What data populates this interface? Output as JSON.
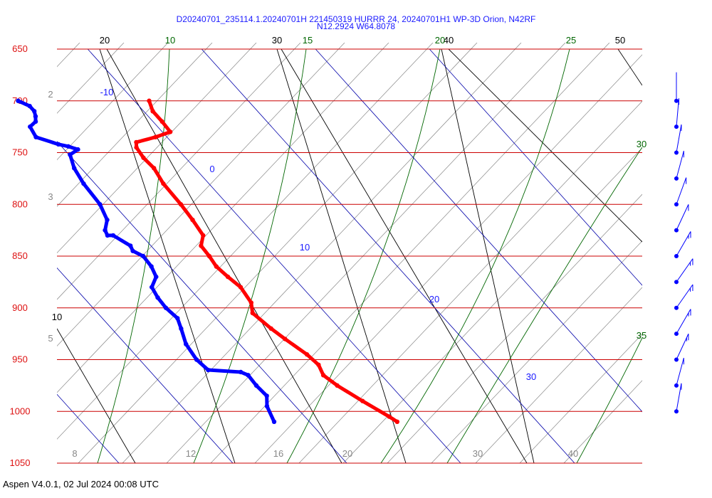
{
  "title": "D20240701_235114.1.20240701H 221450319 HURRR 24, 20240701H1 WP-3D Orion, N42RF",
  "subtitle": "N12.2924 W64.8078",
  "footer": "Aspen V4.0.1, 02 Jul 2024  00:08 UTC",
  "colors": {
    "temperature": "#ff0000",
    "dewpoint": "#0000ff",
    "isobar": "#cc0000",
    "pressure_label": "#dd1111",
    "isotherm": "#0000aa",
    "dry_adiabat": "#000000",
    "moist_adiabat": "#006600",
    "mixing_ratio": "#888888",
    "wind_barb": "#0000ff"
  },
  "chart_data": {
    "type": "line",
    "pressure_levels": [
      650,
      700,
      750,
      800,
      850,
      900,
      950,
      1000,
      1050
    ],
    "pressure_labels": [
      "650",
      "700",
      "750",
      "800",
      "850",
      "900",
      "950",
      "1000",
      "1050"
    ],
    "isotherm_labels": [
      "-10",
      "0",
      "10",
      "20",
      "30"
    ],
    "dry_adiabat_labels": [
      "20",
      "30",
      "40",
      "50",
      "10"
    ],
    "moist_adiabat_labels": [
      "10",
      "15",
      "20",
      "25",
      "30",
      "35"
    ],
    "mixing_ratio_labels": [
      "2",
      "3",
      "5",
      "8",
      "12",
      "16",
      "20",
      "30",
      "40"
    ],
    "series": [
      {
        "name": "temperature",
        "points": [
          [
            700,
            11.3
          ],
          [
            710,
            10.8
          ],
          [
            720,
            10.8
          ],
          [
            730,
            10.7
          ],
          [
            735,
            9.0
          ],
          [
            740,
            6.9
          ],
          [
            745,
            6.5
          ],
          [
            755,
            6.3
          ],
          [
            765,
            6.4
          ],
          [
            780,
            6.0
          ],
          [
            800,
            5.9
          ],
          [
            815,
            5.7
          ],
          [
            830,
            5.4
          ],
          [
            840,
            4.4
          ],
          [
            850,
            4.3
          ],
          [
            860,
            4.1
          ],
          [
            870,
            4.3
          ],
          [
            880,
            4.6
          ],
          [
            895,
            4.3
          ],
          [
            905,
            3.6
          ],
          [
            920,
            4.0
          ],
          [
            930,
            4.4
          ],
          [
            945,
            5.1
          ],
          [
            955,
            5.3
          ],
          [
            965,
            4.9
          ],
          [
            975,
            5.3
          ],
          [
            990,
            6.3
          ],
          [
            1005,
            7.4
          ],
          [
            1010,
            7.7
          ]
        ]
      },
      {
        "name": "dewpoint",
        "points": [
          [
            700,
            -0.2
          ],
          [
            705,
            0.4
          ],
          [
            710,
            0.4
          ],
          [
            715,
            0.1
          ],
          [
            720,
            -0.3
          ],
          [
            725,
            -1.2
          ],
          [
            735,
            -1.5
          ],
          [
            742,
            -0.1
          ],
          [
            744,
            0.6
          ],
          [
            747,
            1.2
          ],
          [
            752,
            0.1
          ],
          [
            765,
            -0.6
          ],
          [
            780,
            -1.0
          ],
          [
            800,
            -1.2
          ],
          [
            815,
            -1.8
          ],
          [
            825,
            -2.8
          ],
          [
            830,
            -3.0
          ],
          [
            830,
            -2.5
          ],
          [
            840,
            -1.8
          ],
          [
            845,
            -2.0
          ],
          [
            850,
            -1.5
          ],
          [
            860,
            -1.6
          ],
          [
            870,
            -2.0
          ],
          [
            880,
            -3.2
          ],
          [
            890,
            -3.5
          ],
          [
            900,
            -3.6
          ],
          [
            910,
            -3.4
          ],
          [
            920,
            -3.9
          ],
          [
            935,
            -4.7
          ],
          [
            950,
            -5.0
          ],
          [
            960,
            -4.8
          ],
          [
            962,
            -2.1
          ],
          [
            965,
            -1.7
          ],
          [
            975,
            -1.8
          ],
          [
            985,
            -1.7
          ],
          [
            995,
            -2.5
          ],
          [
            1010,
            -3.1
          ]
        ]
      }
    ],
    "wind_barbs": [
      {
        "pressure": 700,
        "speed_kt": 5,
        "direction_deg": 90
      },
      {
        "pressure": 725,
        "speed_kt": 10,
        "direction_deg": 95
      },
      {
        "pressure": 750,
        "speed_kt": 10,
        "direction_deg": 100
      },
      {
        "pressure": 775,
        "speed_kt": 10,
        "direction_deg": 105
      },
      {
        "pressure": 800,
        "speed_kt": 10,
        "direction_deg": 110
      },
      {
        "pressure": 825,
        "speed_kt": 10,
        "direction_deg": 115
      },
      {
        "pressure": 850,
        "speed_kt": 15,
        "direction_deg": 120
      },
      {
        "pressure": 875,
        "speed_kt": 15,
        "direction_deg": 125
      },
      {
        "pressure": 900,
        "speed_kt": 15,
        "direction_deg": 125
      },
      {
        "pressure": 925,
        "speed_kt": 15,
        "direction_deg": 120
      },
      {
        "pressure": 950,
        "speed_kt": 15,
        "direction_deg": 115
      },
      {
        "pressure": 975,
        "speed_kt": 10,
        "direction_deg": 105
      },
      {
        "pressure": 1000,
        "speed_kt": 10,
        "direction_deg": 100
      }
    ],
    "grid": true,
    "legend": "none"
  }
}
